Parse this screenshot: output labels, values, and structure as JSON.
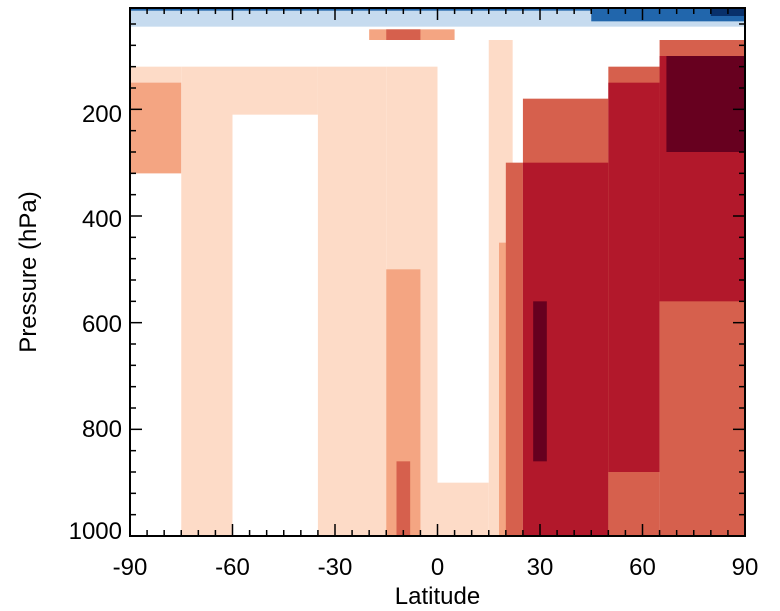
{
  "chart_data": {
    "type": "heatmap",
    "title": "",
    "xlabel": "Latitude",
    "ylabel": "Pressure (hPa)",
    "xlim": [
      -90,
      90
    ],
    "ylim": [
      1000,
      10
    ],
    "x_ticks": [
      "-90",
      "-60",
      "-30",
      "0",
      "30",
      "60",
      "90"
    ],
    "y_ticks": [
      "200",
      "400",
      "600",
      "800",
      "1000"
    ],
    "x_tick_values": [
      -90,
      -60,
      -30,
      0,
      30,
      60,
      90
    ],
    "y_tick_values": [
      200,
      400,
      600,
      800,
      1000
    ],
    "levels": [
      -3,
      -2,
      -1,
      0,
      1,
      2,
      3,
      4,
      5
    ],
    "colors": {
      "-3": "#08306b",
      "-2": "#2166ac",
      "-1": "#c6dbef",
      "1": "#fddbc7",
      "2": "#f4a582",
      "3": "#d6604d",
      "4": "#b2182b",
      "5": "#67001f"
    },
    "regions": [
      {
        "lat": [
          -90,
          90
        ],
        "p": [
          10,
          45
        ],
        "level": -1
      },
      {
        "lat": [
          -90,
          -75
        ],
        "p": [
          120,
          320
        ],
        "level": 1
      },
      {
        "lat": [
          -90,
          -75
        ],
        "p": [
          150,
          320
        ],
        "level": 2
      },
      {
        "lat": [
          -75,
          -60
        ],
        "p": [
          120,
          1000
        ],
        "level": 1
      },
      {
        "lat": [
          -60,
          -35
        ],
        "p": [
          120,
          210
        ],
        "level": 1
      },
      {
        "lat": [
          -35,
          -15
        ],
        "p": [
          120,
          1000
        ],
        "level": 1
      },
      {
        "lat": [
          -15,
          0
        ],
        "p": [
          120,
          1000
        ],
        "level": 1
      },
      {
        "lat": [
          -15,
          -5
        ],
        "p": [
          500,
          1000
        ],
        "level": 2
      },
      {
        "lat": [
          -12,
          -8
        ],
        "p": [
          860,
          1000
        ],
        "level": 3
      },
      {
        "lat": [
          -20,
          5
        ],
        "p": [
          50,
          70
        ],
        "level": 2
      },
      {
        "lat": [
          -15,
          -5
        ],
        "p": [
          50,
          70
        ],
        "level": 3
      },
      {
        "lat": [
          0,
          15
        ],
        "p": [
          900,
          1000
        ],
        "level": 1
      },
      {
        "lat": [
          15,
          22
        ],
        "p": [
          70,
          1000
        ],
        "level": 1
      },
      {
        "lat": [
          18,
          22
        ],
        "p": [
          450,
          1000
        ],
        "level": 2
      },
      {
        "lat": [
          20,
          25
        ],
        "p": [
          300,
          1000
        ],
        "level": 3
      },
      {
        "lat": [
          25,
          50
        ],
        "p": [
          180,
          1000
        ],
        "level": 3
      },
      {
        "lat": [
          25,
          50
        ],
        "p": [
          300,
          1000
        ],
        "level": 4
      },
      {
        "lat": [
          28,
          32
        ],
        "p": [
          560,
          860
        ],
        "level": 5
      },
      {
        "lat": [
          50,
          65
        ],
        "p": [
          120,
          1000
        ],
        "level": 3
      },
      {
        "lat": [
          50,
          65
        ],
        "p": [
          150,
          880
        ],
        "level": 4
      },
      {
        "lat": [
          65,
          90
        ],
        "p": [
          70,
          1000
        ],
        "level": 3
      },
      {
        "lat": [
          65,
          90
        ],
        "p": [
          100,
          560
        ],
        "level": 4
      },
      {
        "lat": [
          67,
          90
        ],
        "p": [
          100,
          280
        ],
        "level": 5
      },
      {
        "lat": [
          45,
          90
        ],
        "p": [
          10,
          35
        ],
        "level": -2
      },
      {
        "lat": [
          80,
          90
        ],
        "p": [
          10,
          25
        ],
        "level": -3
      },
      {
        "lat": [
          -90,
          45
        ],
        "p": [
          10,
          15
        ],
        "level": -2
      }
    ]
  }
}
